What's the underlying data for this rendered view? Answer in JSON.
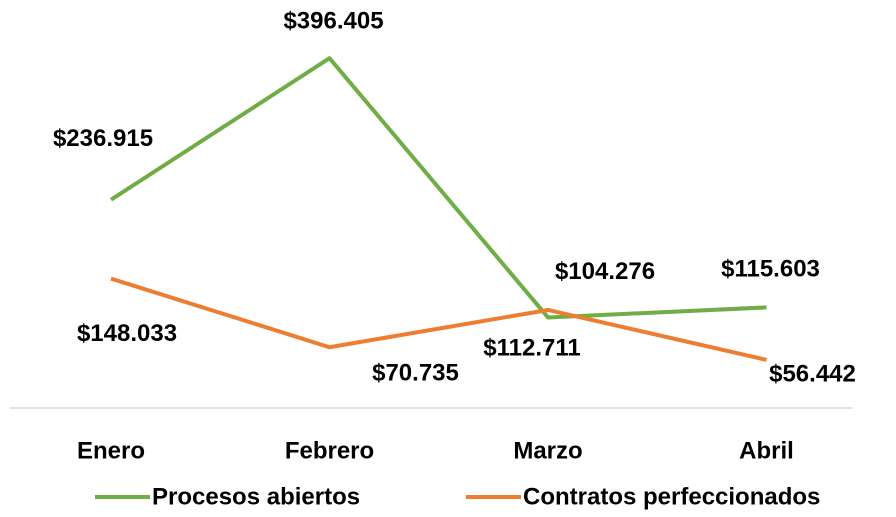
{
  "chart_data": {
    "type": "line",
    "categories": [
      "Enero",
      "Febrero",
      "Marzo",
      "Abril"
    ],
    "series": [
      {
        "name": "Procesos abiertos",
        "color": "#70ad47",
        "values": [
          236915,
          396405,
          104276,
          115603
        ],
        "value_labels": [
          "$236.915",
          "$396.405",
          "$104.276",
          "$115.603"
        ]
      },
      {
        "name": "Contratos perfeccionados",
        "color": "#ed7d31",
        "values": [
          148033,
          70735,
          112711,
          56442
        ],
        "value_labels": [
          "$148.033",
          "$70.735",
          "$112.711",
          "$56.442"
        ]
      }
    ],
    "ylim": [
      0,
      400000
    ],
    "legend": "bottom"
  }
}
